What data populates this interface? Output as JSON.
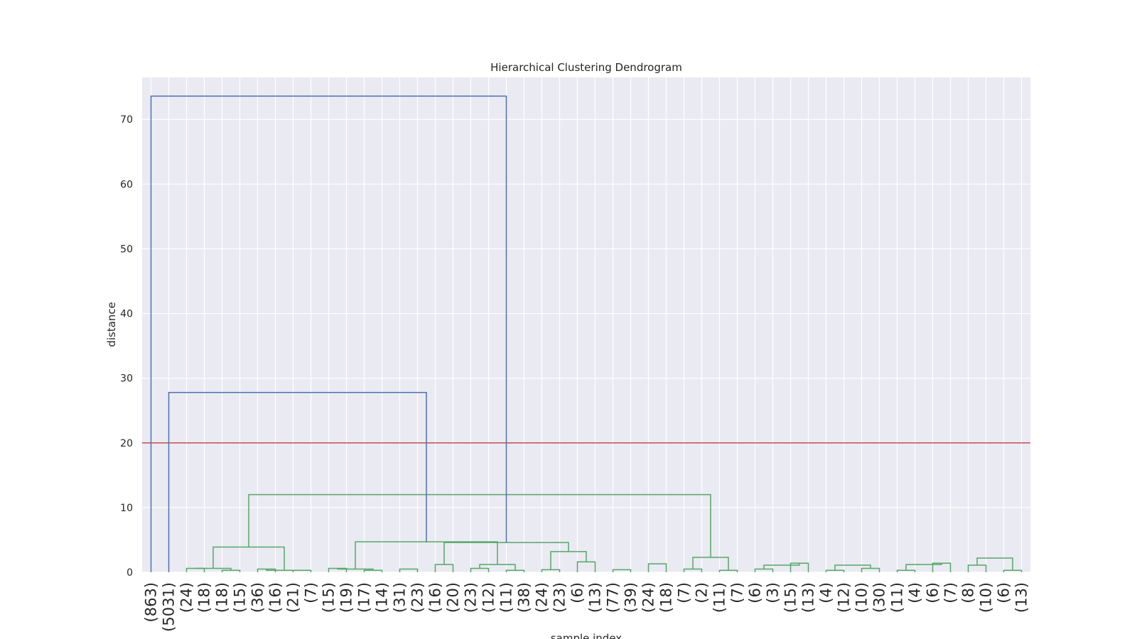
{
  "chart_data": {
    "type": "dendrogram",
    "title": "Hierarchical Clustering Dendrogram",
    "xlabel": "sample index",
    "ylabel": "distance",
    "ylim": [
      0,
      76.5
    ],
    "yticks": [
      0,
      10,
      20,
      30,
      40,
      50,
      60,
      70
    ],
    "grid": true,
    "cut_line": {
      "y": 20,
      "color": "#c44e52"
    },
    "colors": {
      "above_threshold": "#4c72b0",
      "cluster": "#55a868",
      "background": "#eaeaf2",
      "grid": "#ffffff"
    },
    "leaf_labels": [
      "(863)",
      "(5031)",
      "(24)",
      "(18)",
      "(18)",
      "(15)",
      "(36)",
      "(16)",
      "(21)",
      "(7)",
      "(15)",
      "(19)",
      "(17)",
      "(14)",
      "(31)",
      "(23)",
      "(16)",
      "(20)",
      "(23)",
      "(12)",
      "(11)",
      "(38)",
      "(24)",
      "(23)",
      "(6)",
      "(13)",
      "(77)",
      "(39)",
      "(24)",
      "(18)",
      "(7)",
      "(2)",
      "(11)",
      "(7)",
      "(6)",
      "(3)",
      "(15)",
      "(13)",
      "(4)",
      "(12)",
      "(10)",
      "(30)",
      "(11)",
      "(4)",
      "(6)",
      "(7)",
      "(8)",
      "(10)",
      "(6)",
      "(13)"
    ],
    "merges": [
      {
        "left": 2,
        "right": 3,
        "height": 0.6
      },
      {
        "left": 4,
        "right": 5,
        "height": 0.3
      },
      {
        "left": 6,
        "right": 7,
        "height": 0.5
      },
      {
        "left": 8,
        "right": 9,
        "height": 0.3
      },
      {
        "left": 10,
        "right": 11,
        "height": 0.6
      },
      {
        "left": 12,
        "right": 13,
        "height": 0.3
      },
      {
        "left": 14,
        "right": 15,
        "height": 0.5
      },
      {
        "left": 16,
        "right": 17,
        "height": 1.2
      },
      {
        "left": 18,
        "right": 19,
        "height": 0.6
      },
      {
        "left": 20,
        "right": 21,
        "height": 0.3
      },
      {
        "left": 22,
        "right": 23,
        "height": 0.4
      },
      {
        "left": 24,
        "right": 25,
        "height": 1.6
      },
      {
        "left": 26,
        "right": 27,
        "height": 0.4
      },
      {
        "left": 28,
        "right": 29,
        "height": 1.3
      },
      {
        "left": 30,
        "right": 31,
        "height": 0.5
      },
      {
        "left": 32,
        "right": 33,
        "height": 0.3
      },
      {
        "left": 34,
        "right": 35,
        "height": 0.5
      },
      {
        "left": 36,
        "right": 37,
        "height": 1.4
      },
      {
        "left": 38,
        "right": 39,
        "height": 0.3
      },
      {
        "left": 40,
        "right": 41,
        "height": 0.6
      },
      {
        "left": 42,
        "right": 43,
        "height": 0.3
      },
      {
        "left": 44,
        "right": 45,
        "height": 1.4
      },
      {
        "left": 46,
        "right": 47,
        "height": 1.1
      },
      {
        "left": 48,
        "right": 49,
        "height": 0.3
      },
      {
        "left": 50,
        "right": 51,
        "height": 0.6
      },
      {
        "left": 52,
        "right": 53,
        "height": 0.3
      },
      {
        "left": 54,
        "right": 55,
        "height": 0.5
      },
      {
        "left": 58,
        "right": 59,
        "height": 1.2
      },
      {
        "left": 60,
        "right": 61,
        "height": 3.2
      },
      {
        "left": 64,
        "right": 65,
        "height": 2.3
      },
      {
        "left": 66,
        "right": 67,
        "height": 1.1
      },
      {
        "left": 68,
        "right": 69,
        "height": 1.1
      },
      {
        "left": 70,
        "right": 71,
        "height": 1.2
      },
      {
        "left": 72,
        "right": 73,
        "height": 2.2
      },
      {
        "left": 74,
        "right": 75,
        "height": 3.9
      },
      {
        "left": 76,
        "right": 77,
        "height": 4.7
      },
      {
        "left": 57,
        "right": 78,
        "height": 4.6
      },
      {
        "left": 79,
        "right": 84,
        "height": 12.0
      },
      {
        "left": 1,
        "right": 85,
        "height": 27.8
      },
      {
        "left": 0,
        "right": 86,
        "height": 73.6
      }
    ]
  }
}
